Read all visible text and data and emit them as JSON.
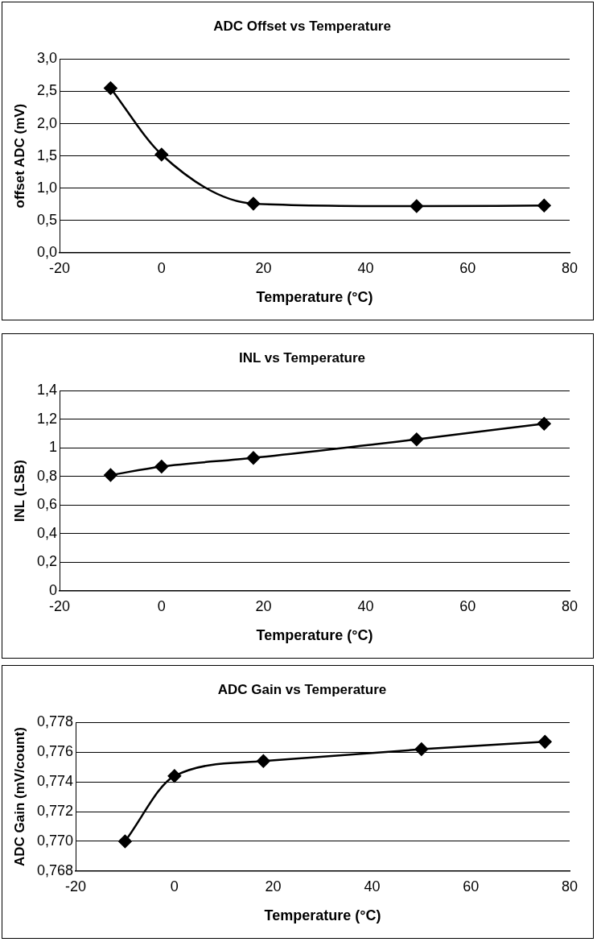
{
  "chart_data": [
    {
      "type": "line",
      "title": "ADC Offset vs Temperature",
      "xlabel": "Temperature (°C)",
      "ylabel": "offset ADC (mV)",
      "x": [
        -10,
        0,
        18,
        50,
        75
      ],
      "series": [
        {
          "color": "#000000",
          "values": [
            2.55,
            1.52,
            0.76,
            0.72,
            0.73
          ]
        }
      ],
      "xlim": [
        -20,
        80
      ],
      "xticks": [
        -20,
        0,
        20,
        40,
        60,
        80
      ],
      "ylim": [
        0,
        3
      ],
      "yticks": [
        {
          "value": 0,
          "label": "0,0"
        },
        {
          "value": 0.5,
          "label": "0,5"
        },
        {
          "value": 1,
          "label": "1,0"
        },
        {
          "value": 1.5,
          "label": "1,5"
        },
        {
          "value": 2,
          "label": "2,0"
        },
        {
          "value": 2.5,
          "label": "2,5"
        },
        {
          "value": 3,
          "label": "3,0"
        }
      ],
      "grid": "y",
      "legend": false,
      "marker": "diamond"
    },
    {
      "type": "line",
      "title": "INL vs Temperature",
      "xlabel": "Temperature (°C)",
      "ylabel": "INL (LSB)",
      "x": [
        -10,
        0,
        18,
        50,
        75
      ],
      "series": [
        {
          "color": "#000000",
          "values": [
            0.81,
            0.87,
            0.93,
            1.06,
            1.17
          ]
        }
      ],
      "xlim": [
        -20,
        80
      ],
      "xticks": [
        -20,
        0,
        20,
        40,
        60,
        80
      ],
      "ylim": [
        0,
        1.4
      ],
      "yticks": [
        0,
        {
          "value": 0.2,
          "label": "0,2"
        },
        {
          "value": 0.4,
          "label": "0,4"
        },
        {
          "value": 0.6,
          "label": "0,6"
        },
        {
          "value": 0.8,
          "label": "0,8"
        },
        1,
        {
          "value": 1.2,
          "label": "1,2"
        },
        {
          "value": 1.4,
          "label": "1,4"
        }
      ],
      "grid": "y",
      "legend": false,
      "marker": "diamond"
    },
    {
      "type": "line",
      "title": "ADC Gain vs Temperature",
      "xlabel": "Temperature (°C)",
      "ylabel": "ADC Gain (mV/count)",
      "x": [
        -10,
        0,
        18,
        50,
        75
      ],
      "series": [
        {
          "color": "#000000",
          "values": [
            0.77,
            0.7744,
            0.7754,
            0.7762,
            0.7767
          ]
        }
      ],
      "xlim": [
        -20,
        80
      ],
      "xticks": [
        -20,
        0,
        20,
        40,
        60,
        80
      ],
      "ylim": [
        0.768,
        0.778
      ],
      "yticks": [
        {
          "value": 0.768,
          "label": "0,768"
        },
        {
          "value": 0.77,
          "label": "0,770"
        },
        {
          "value": 0.772,
          "label": "0,772"
        },
        {
          "value": 0.774,
          "label": "0,774"
        },
        {
          "value": 0.776,
          "label": "0,776"
        },
        {
          "value": 0.778,
          "label": "0,778"
        }
      ],
      "grid": "y",
      "legend": false,
      "marker": "diamond"
    }
  ]
}
